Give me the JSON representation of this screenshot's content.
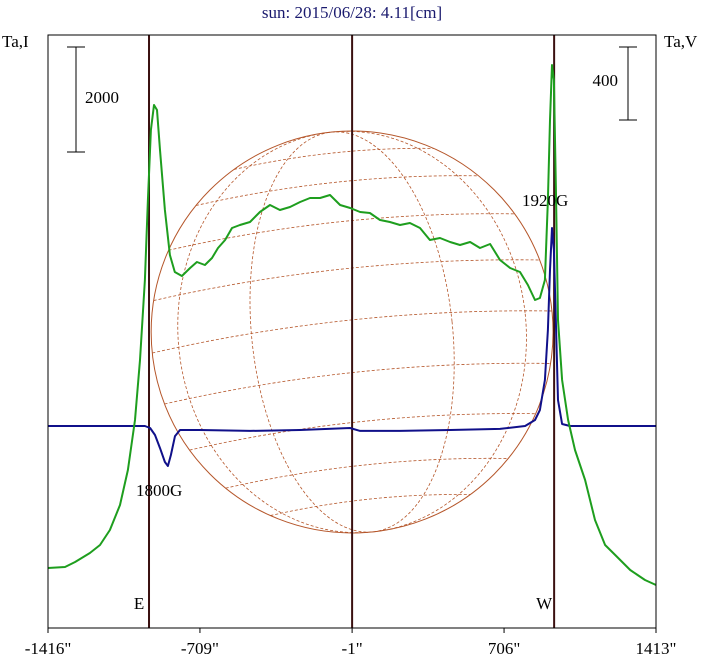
{
  "chart_data": {
    "type": "line",
    "title": "sun: 2015/06/28: 4.11[cm]",
    "y_label": "Ta,I",
    "y2_label": "Ta,V",
    "xlim": [
      -1416,
      1413
    ],
    "xticks": [
      {
        "value": -1416,
        "label": "-1416\""
      },
      {
        "value": -709,
        "label": "-709\""
      },
      {
        "value": -1,
        "label": "-1\""
      },
      {
        "value": 706,
        "label": "706\""
      },
      {
        "value": 1413,
        "label": "1413\""
      }
    ],
    "ylim": [
      0,
      11297
    ],
    "y2lim": [
      -1107,
      2143
    ],
    "scale_bars": [
      {
        "value": 2000,
        "label": "2000"
      },
      {
        "value": 400,
        "label": "400",
        "axis": "y2"
      }
    ],
    "markers": [
      {
        "x": -946,
        "label": "E"
      },
      {
        "x": -1
      },
      {
        "x": 939,
        "label": "W"
      }
    ],
    "disk": {
      "center": -1,
      "radius": 935,
      "color": "#b5562a"
    },
    "annotations": [
      "1800G",
      "1920G"
    ],
    "series": [
      {
        "name": "I",
        "color": "#1e9e1e",
        "x": [
          -1416,
          -1337,
          -1290,
          -1221,
          -1174,
          -1128,
          -1081,
          -1044,
          -1011,
          -988,
          -965,
          -951,
          -937,
          -923,
          -909,
          -895,
          -872,
          -849,
          -826,
          -793,
          -755,
          -723,
          -686,
          -653,
          -625,
          -592,
          -560,
          -523,
          -476,
          -430,
          -383,
          -337,
          -290,
          -243,
          -197,
          -150,
          -104,
          -57,
          -10,
          36,
          82,
          129,
          175,
          222,
          268,
          315,
          361,
          408,
          455,
          501,
          548,
          594,
          641,
          687,
          734,
          780,
          817,
          850,
          873,
          896,
          910,
          920,
          929,
          938,
          948,
          957,
          976,
          1004,
          1036,
          1083,
          1129,
          1176,
          1223,
          1293,
          1362,
          1413
        ],
        "values": [
          1143,
          1162,
          1257,
          1429,
          1581,
          1867,
          2343,
          3010,
          3962,
          5105,
          6629,
          8153,
          9487,
          9963,
          9868,
          9106,
          7963,
          7106,
          6782,
          6706,
          6858,
          6972,
          6915,
          7049,
          7239,
          7391,
          7620,
          7677,
          7734,
          7925,
          8058,
          7963,
          8020,
          8115,
          8192,
          8192,
          8249,
          8058,
          8001,
          7925,
          7906,
          7772,
          7734,
          7677,
          7715,
          7620,
          7391,
          7430,
          7353,
          7296,
          7353,
          7239,
          7315,
          7010,
          6858,
          6782,
          6534,
          6248,
          6286,
          6629,
          8153,
          9677,
          10725,
          10439,
          8153,
          5867,
          4724,
          3962,
          3391,
          2819,
          2057,
          1581,
          1391,
          1105,
          914,
          819
        ]
      },
      {
        "name": "V",
        "color": "#10108a",
        "axis": "y2",
        "x": [
          -1416,
          -1174,
          -1034,
          -965,
          -941,
          -918,
          -895,
          -872,
          -858,
          -844,
          -825,
          -802,
          -755,
          -709,
          -476,
          -243,
          -11,
          36,
          222,
          455,
          687,
          804,
          850,
          873,
          896,
          910,
          920,
          929,
          938,
          948,
          957,
          976,
          1013,
          1153,
          1413
        ],
        "values": [
          0,
          0,
          0,
          0,
          -11,
          -49,
          -121,
          -197,
          -219,
          -159,
          -55,
          -22,
          -22,
          -22,
          -27,
          -22,
          -11,
          -27,
          -27,
          -22,
          -16,
          0,
          33,
          88,
          252,
          526,
          855,
          1085,
          964,
          526,
          142,
          11,
          0,
          0,
          0
        ]
      }
    ]
  }
}
